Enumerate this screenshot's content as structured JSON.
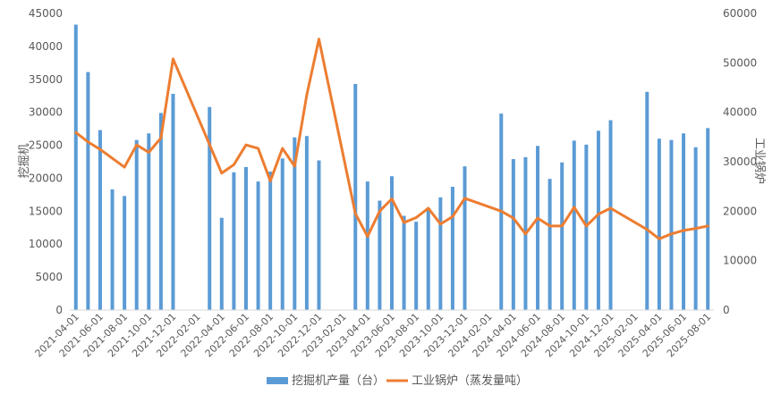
{
  "chart_data": {
    "type": "bar",
    "x": [
      "2021-04-01",
      "2021-05-01",
      "2021-06-01",
      "2021-07-01",
      "2021-08-01",
      "2021-09-01",
      "2021-10-01",
      "2021-11-01",
      "2021-12-01",
      "2022-01-01",
      "2022-02-01",
      "2022-03-01",
      "2022-04-01",
      "2022-05-01",
      "2022-06-01",
      "2022-07-01",
      "2022-08-01",
      "2022-09-01",
      "2022-10-01",
      "2022-11-01",
      "2022-12-01",
      "2023-01-01",
      "2023-02-01",
      "2023-03-01",
      "2023-04-01",
      "2023-05-01",
      "2023-06-01",
      "2023-07-01",
      "2023-08-01",
      "2023-09-01",
      "2023-10-01",
      "2023-11-01",
      "2023-12-01",
      "2024-01-01",
      "2024-02-01",
      "2024-03-01",
      "2024-04-01",
      "2024-05-01",
      "2024-06-01",
      "2024-07-01",
      "2024-08-01",
      "2024-09-01",
      "2024-10-01",
      "2024-11-01",
      "2024-12-01",
      "2025-01-01",
      "2025-02-01",
      "2025-03-01",
      "2025-04-01",
      "2025-05-01",
      "2025-06-01",
      "2025-07-01",
      "2025-08-01"
    ],
    "x_tick_labels": [
      "2021-04-01",
      "2021-06-01",
      "2021-08-01",
      "2021-10-01",
      "2021-12-01",
      "2022-02-01",
      "2022-04-01",
      "2022-06-01",
      "2022-08-01",
      "2022-10-01",
      "2022-12-01",
      "2023-02-01",
      "2023-04-01",
      "2023-06-01",
      "2023-08-01",
      "2023-10-01",
      "2023-12-01",
      "2024-02-01",
      "2024-04-01",
      "2024-06-01",
      "2024-08-01",
      "2024-10-01",
      "2024-12-01",
      "2025-02-01",
      "2025-04-01",
      "2025-06-01",
      "2025-08-01"
    ],
    "series": [
      {
        "name": "挖掘机产量（台）",
        "type": "bar",
        "axis": "left",
        "color": "#5B9BD5",
        "values": [
          43300,
          36100,
          27300,
          18300,
          17300,
          25800,
          26800,
          29900,
          32800,
          null,
          null,
          30800,
          14000,
          20900,
          21700,
          19500,
          21000,
          23000,
          26200,
          26400,
          22700,
          null,
          null,
          34300,
          19500,
          16600,
          20300,
          14300,
          13400,
          15500,
          17100,
          18700,
          21800,
          null,
          null,
          29800,
          22900,
          23200,
          24900,
          19900,
          22400,
          25700,
          25100,
          27200,
          28800,
          null,
          null,
          33100,
          26000,
          25800,
          26800,
          24700,
          27600
        ]
      },
      {
        "name": "工业锅炉（蒸发量吨）",
        "type": "line",
        "axis": "right",
        "color": "#ED7D31",
        "values": [
          35900,
          34000,
          32500,
          30700,
          28900,
          33400,
          31900,
          34800,
          50800,
          null,
          null,
          null,
          27700,
          29400,
          33400,
          32700,
          26100,
          32700,
          29100,
          43500,
          54800,
          null,
          null,
          19500,
          14900,
          20000,
          22500,
          17700,
          18700,
          20600,
          17400,
          18900,
          22600,
          null,
          null,
          20000,
          18600,
          15400,
          18600,
          17000,
          17000,
          20800,
          17000,
          19400,
          20600,
          null,
          null,
          16300,
          14400,
          15400,
          16100,
          16500,
          17000
        ]
      }
    ],
    "gap_bridging": {
      "line_connects_across_missing": true
    },
    "y_left": {
      "label": "挖掘机",
      "min": 0,
      "max": 45000,
      "ticks": [
        0,
        5000,
        10000,
        15000,
        20000,
        25000,
        30000,
        35000,
        40000,
        45000
      ]
    },
    "y_right": {
      "label": "工业锅炉",
      "min": 0,
      "max": 60000,
      "ticks": [
        0,
        10000,
        20000,
        30000,
        40000,
        50000,
        60000
      ]
    },
    "legend_position": "bottom",
    "grid": false
  }
}
